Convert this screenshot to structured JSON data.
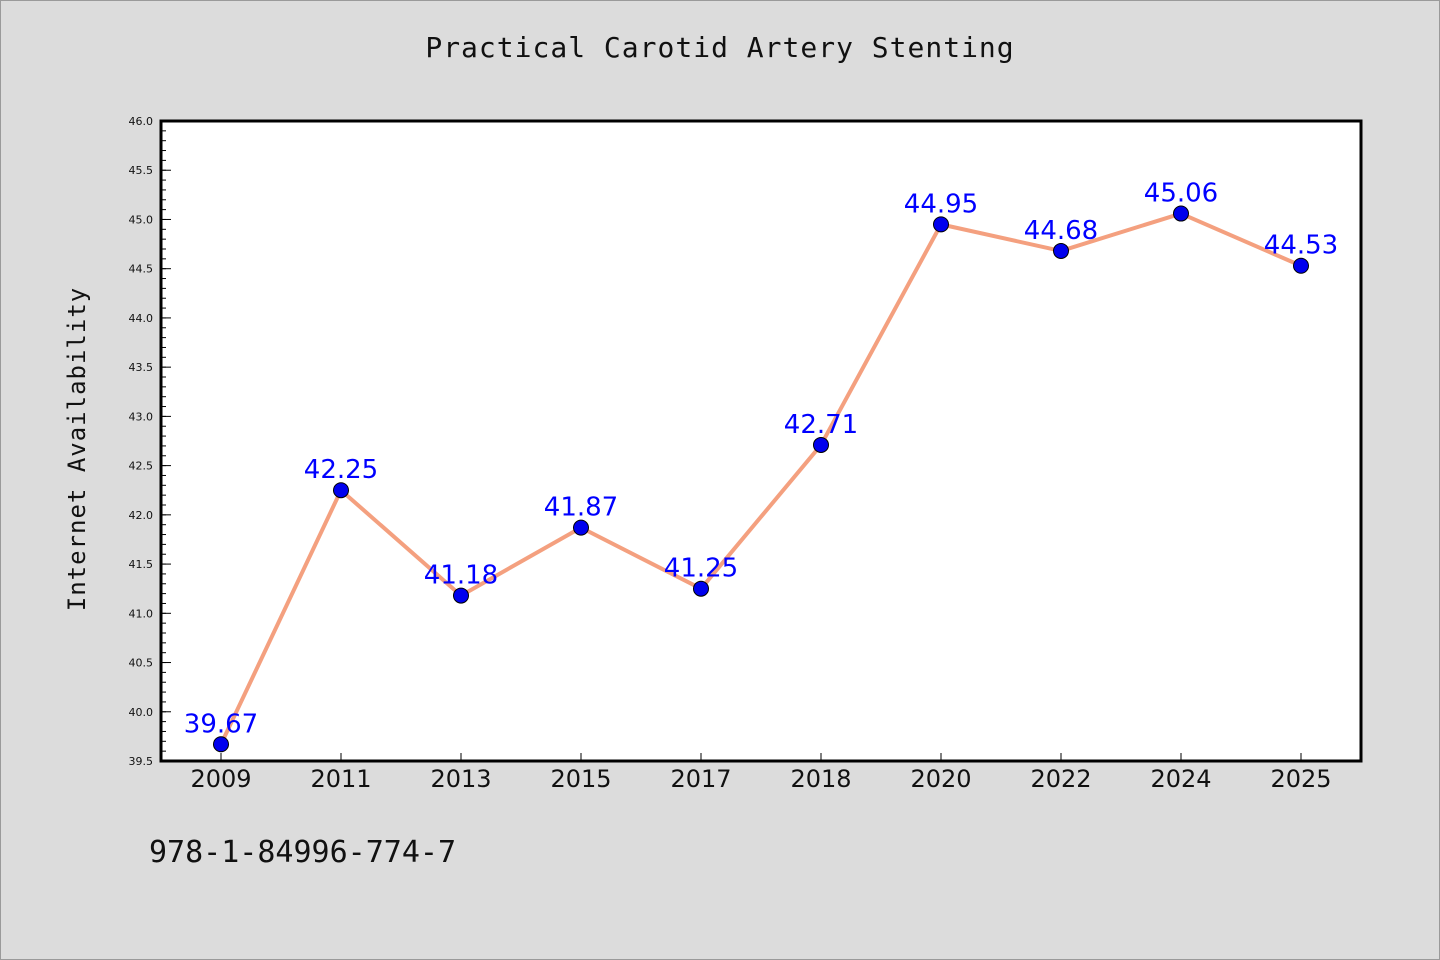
{
  "chart_data": {
    "type": "line",
    "title": "Practical Carotid Artery Stenting",
    "xlabel": "",
    "ylabel": "Internet Availability",
    "categories": [
      "2009",
      "2011",
      "2013",
      "2015",
      "2017",
      "2018",
      "2020",
      "2022",
      "2024",
      "2025"
    ],
    "series": [
      {
        "values": [
          39.67,
          42.25,
          41.18,
          41.87,
          41.25,
          42.71,
          44.95,
          44.68,
          45.06,
          44.53
        ],
        "labels": [
          "39.67",
          "42.25",
          "41.18",
          "41.87",
          "41.25",
          "42.71",
          "44.95",
          "44.68",
          "45.06",
          "44.53"
        ],
        "line_color": "#f4a07f",
        "marker_color": "#0000ee",
        "label_color": "#0000ff"
      }
    ],
    "ylim": [
      39.5,
      46.0
    ],
    "yticks": [
      "39.5",
      "40.0",
      "40.5",
      "41.0",
      "41.5",
      "42.0",
      "42.5",
      "43.0",
      "43.5",
      "44.0",
      "44.5",
      "45.0",
      "45.5",
      "46.0"
    ],
    "grid": false,
    "legend": "none"
  },
  "footer": {
    "code": "978-1-84996-774-7"
  },
  "colors": {
    "background": "#dcdcdc",
    "plot_background": "#ffffff",
    "axis": "#000000"
  }
}
